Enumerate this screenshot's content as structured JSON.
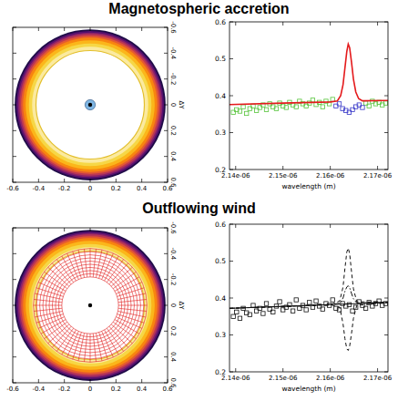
{
  "chart_data": [
    {
      "type": "image",
      "title": "Magnetospheric accretion",
      "y_label": "ΔY",
      "xlim": [
        -0.6,
        0.6
      ],
      "ylim": [
        0.6,
        -0.6
      ],
      "xticks": [
        -0.6,
        -0.4,
        -0.2,
        0,
        0.2,
        0.4,
        0.6
      ],
      "yticks": [
        -0.6,
        -0.4,
        -0.2,
        0,
        0.2,
        0.4,
        0.6
      ],
      "center": [
        0,
        0
      ],
      "rings": [
        {
          "radius": 0.585,
          "color": "#1f0c48"
        },
        {
          "radius": 0.572,
          "color": "#55106e"
        },
        {
          "radius": 0.56,
          "color": "#8a226a"
        },
        {
          "radius": 0.548,
          "color": "#bc3754"
        },
        {
          "radius": 0.535,
          "color": "#e45a31"
        },
        {
          "radius": 0.52,
          "color": "#f8850f"
        },
        {
          "radius": 0.5,
          "color": "#fbb61a"
        },
        {
          "radius": 0.475,
          "color": "#f6d746"
        },
        {
          "radius": 0.45,
          "color": "#fbeaa0"
        }
      ],
      "inner_radius": 0.42,
      "star": {
        "radius": 0.04,
        "color": "#7fb6e3"
      }
    },
    {
      "type": "line",
      "x_label": "wavelength (m)",
      "xlim": [
        2.1387e-06,
        2.1722e-06
      ],
      "ylim": [
        0.2,
        0.6
      ],
      "xticks": [
        {
          "value": 2.14e-06,
          "label": "2.14e-06"
        },
        {
          "value": 2.15e-06,
          "label": "2.15e-06"
        },
        {
          "value": 2.16e-06,
          "label": "2.16e-06"
        },
        {
          "value": 2.17e-06,
          "label": "2.17e-06"
        }
      ],
      "yticks": [
        0.2,
        0.3,
        0.4,
        0.5,
        0.6
      ],
      "series": [
        {
          "type": "scatter",
          "color": "#55c43a",
          "marker": "square",
          "x": [
            2.1395e-06,
            2.1402e-06,
            2.1409e-06,
            2.1416e-06,
            2.1423e-06,
            2.143e-06,
            2.1437e-06,
            2.1444e-06,
            2.1451e-06,
            2.1458e-06,
            2.1465e-06,
            2.1472e-06,
            2.1479e-06,
            2.1486e-06,
            2.1493e-06,
            2.15e-06,
            2.1507e-06,
            2.1514e-06,
            2.1521e-06,
            2.1528e-06,
            2.1535e-06,
            2.1542e-06,
            2.1549e-06,
            2.1556e-06,
            2.1563e-06,
            2.157e-06,
            2.1577e-06,
            2.1584e-06,
            2.1591e-06,
            2.1598e-06,
            2.1605e-06,
            2.1675e-06,
            2.1682e-06,
            2.1689e-06,
            2.1696e-06,
            2.1703e-06,
            2.171e-06,
            2.1717e-06
          ],
          "values": [
            0.355,
            0.362,
            0.358,
            0.37,
            0.352,
            0.365,
            0.372,
            0.36,
            0.368,
            0.375,
            0.362,
            0.378,
            0.37,
            0.365,
            0.38,
            0.372,
            0.368,
            0.382,
            0.375,
            0.37,
            0.385,
            0.378,
            0.372,
            0.38,
            0.388,
            0.376,
            0.382,
            0.37,
            0.385,
            0.378,
            0.39,
            0.38,
            0.372,
            0.385,
            0.378,
            0.382,
            0.375,
            0.38
          ]
        },
        {
          "type": "scatter",
          "color": "#3535c8",
          "marker": "square",
          "x": [
            2.1612e-06,
            2.1619e-06,
            2.1626e-06,
            2.1633e-06,
            2.164e-06,
            2.1647e-06,
            2.1654e-06,
            2.1661e-06,
            2.1668e-06
          ],
          "values": [
            0.372,
            0.378,
            0.365,
            0.36,
            0.355,
            0.362,
            0.37,
            0.375,
            0.368
          ]
        },
        {
          "type": "line",
          "color": "#e41a1c",
          "line_style": "solid",
          "x": [
            2.1387e-06,
            2.15e-06,
            2.16e-06,
            2.1615e-06,
            2.1622e-06,
            2.1627e-06,
            2.1631e-06,
            2.1635e-06,
            2.1638e-06,
            2.1641e-06,
            2.1645e-06,
            2.1649e-06,
            2.1654e-06,
            2.166e-06,
            2.1668e-06,
            2.1722e-06
          ],
          "values": [
            0.376,
            0.38,
            0.383,
            0.386,
            0.4,
            0.43,
            0.475,
            0.52,
            0.54,
            0.53,
            0.49,
            0.445,
            0.41,
            0.392,
            0.386,
            0.387
          ]
        }
      ]
    },
    {
      "type": "image",
      "title": "Outflowing wind",
      "y_label": "ΔY",
      "xlim": [
        -0.6,
        0.6
      ],
      "ylim": [
        0.6,
        -0.6
      ],
      "xticks": [
        -0.6,
        -0.4,
        -0.2,
        0,
        0.2,
        0.4,
        0.6
      ],
      "yticks": [
        -0.6,
        -0.4,
        -0.2,
        0,
        0.2,
        0.4,
        0.6
      ],
      "center": [
        0,
        0
      ],
      "rings": [
        {
          "radius": 0.585,
          "color": "#1f0c48"
        },
        {
          "radius": 0.572,
          "color": "#55106e"
        },
        {
          "radius": 0.56,
          "color": "#8a226a"
        },
        {
          "radius": 0.548,
          "color": "#bc3754"
        },
        {
          "radius": 0.535,
          "color": "#e45a31"
        },
        {
          "radius": 0.52,
          "color": "#f8850f"
        },
        {
          "radius": 0.5,
          "color": "#fbb61a"
        },
        {
          "radius": 0.475,
          "color": "#f6d746"
        },
        {
          "radius": 0.45,
          "color": "#fbeaa0"
        }
      ],
      "inner_radius": 0.42,
      "wind_grid": {
        "inner_radius": 0.22,
        "outer_radius": 0.44,
        "color": "#e02020"
      }
    },
    {
      "type": "line",
      "x_label": "wavelength (m)",
      "xlim": [
        2.1387e-06,
        2.1722e-06
      ],
      "ylim": [
        0.2,
        0.6
      ],
      "xticks": [
        {
          "value": 2.14e-06,
          "label": "2.14e-06"
        },
        {
          "value": 2.15e-06,
          "label": "2.15e-06"
        },
        {
          "value": 2.16e-06,
          "label": "2.16e-06"
        },
        {
          "value": 2.17e-06,
          "label": "2.17e-06"
        }
      ],
      "yticks": [
        0.2,
        0.3,
        0.4,
        0.5,
        0.6
      ],
      "series": [
        {
          "type": "scatter",
          "color": "#111111",
          "marker": "square",
          "x": [
            2.1395e-06,
            2.1402e-06,
            2.1409e-06,
            2.1416e-06,
            2.1423e-06,
            2.143e-06,
            2.1437e-06,
            2.1444e-06,
            2.1451e-06,
            2.1458e-06,
            2.1465e-06,
            2.1472e-06,
            2.1479e-06,
            2.1486e-06,
            2.1493e-06,
            2.15e-06,
            2.1507e-06,
            2.1514e-06,
            2.1521e-06,
            2.1528e-06,
            2.1535e-06,
            2.1542e-06,
            2.1549e-06,
            2.1556e-06,
            2.1563e-06,
            2.157e-06,
            2.1577e-06,
            2.1584e-06,
            2.1591e-06,
            2.1598e-06,
            2.1605e-06,
            2.1612e-06,
            2.1619e-06,
            2.1626e-06,
            2.1633e-06,
            2.164e-06,
            2.1647e-06,
            2.1654e-06,
            2.1661e-06,
            2.1668e-06,
            2.1675e-06,
            2.1682e-06,
            2.1689e-06,
            2.1696e-06,
            2.1703e-06,
            2.171e-06,
            2.1717e-06
          ],
          "values": [
            0.35,
            0.362,
            0.345,
            0.372,
            0.36,
            0.355,
            0.38,
            0.365,
            0.372,
            0.358,
            0.385,
            0.37,
            0.362,
            0.378,
            0.39,
            0.368,
            0.375,
            0.382,
            0.365,
            0.395,
            0.372,
            0.38,
            0.368,
            0.388,
            0.375,
            0.392,
            0.378,
            0.37,
            0.385,
            0.38,
            0.395,
            0.372,
            0.368,
            0.385,
            0.378,
            0.382,
            0.365,
            0.375,
            0.39,
            0.38,
            0.372,
            0.388,
            0.378,
            0.385,
            0.392,
            0.38,
            0.385
          ]
        },
        {
          "type": "line",
          "color": "#111111",
          "line_style": "solid",
          "x": [
            2.1387e-06,
            2.1722e-06
          ],
          "values": [
            0.372,
            0.388
          ]
        },
        {
          "type": "line",
          "color": "#111111",
          "line_style": "dashed",
          "x": [
            2.1387e-06,
            2.16e-06,
            2.162e-06,
            2.1627e-06,
            2.1631e-06,
            2.1635e-06,
            2.1638e-06,
            2.1641e-06,
            2.1645e-06,
            2.1649e-06,
            2.1656e-06,
            2.1722e-06
          ],
          "values": [
            0.372,
            0.382,
            0.392,
            0.43,
            0.48,
            0.525,
            0.535,
            0.52,
            0.47,
            0.425,
            0.39,
            0.388
          ]
        },
        {
          "type": "line",
          "color": "#111111",
          "line_style": "dashed",
          "x": [
            2.1387e-06,
            2.16e-06,
            2.162e-06,
            2.1627e-06,
            2.1631e-06,
            2.1635e-06,
            2.1638e-06,
            2.1641e-06,
            2.1645e-06,
            2.1649e-06,
            2.1656e-06,
            2.1722e-06
          ],
          "values": [
            0.372,
            0.382,
            0.375,
            0.33,
            0.29,
            0.262,
            0.258,
            0.27,
            0.305,
            0.345,
            0.38,
            0.388
          ]
        },
        {
          "type": "line",
          "color": "#111111",
          "line_style": "dashdot",
          "x": [
            2.1387e-06,
            2.16e-06,
            2.162e-06,
            2.1627e-06,
            2.1631e-06,
            2.1635e-06,
            2.1638e-06,
            2.1641e-06,
            2.1645e-06,
            2.1649e-06,
            2.1656e-06,
            2.1722e-06
          ],
          "values": [
            0.372,
            0.382,
            0.386,
            0.4,
            0.418,
            0.43,
            0.433,
            0.428,
            0.412,
            0.398,
            0.387,
            0.388
          ]
        }
      ]
    }
  ]
}
